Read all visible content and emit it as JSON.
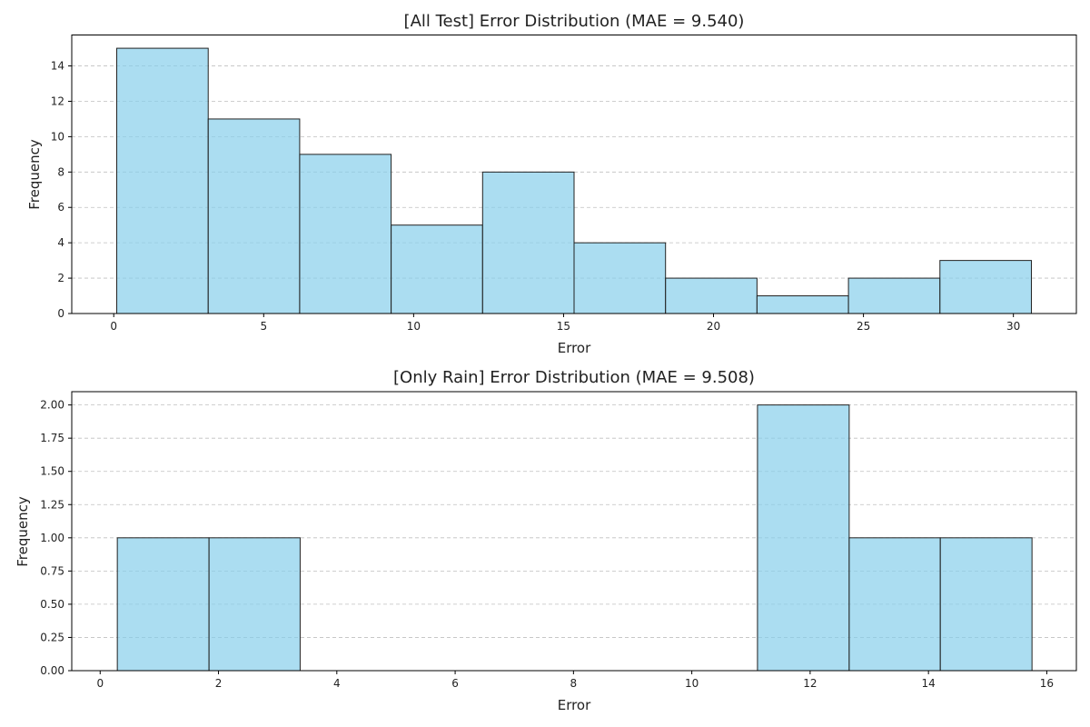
{
  "chart_data": [
    {
      "type": "bar",
      "title": "[All Test] Error Distribution (MAE = 9.540)",
      "xlabel": "Error",
      "ylabel": "Frequency",
      "xlim": [
        -1.4,
        32.1
      ],
      "ylim": [
        0,
        15.75
      ],
      "xticks": [
        0,
        5,
        10,
        15,
        20,
        25,
        30
      ],
      "yticks": [
        0,
        2,
        4,
        6,
        8,
        10,
        12,
        14
      ],
      "yticks_decimals": 0,
      "grid": true,
      "bins": [
        {
          "start": 0.1,
          "end": 3.15,
          "value": 15
        },
        {
          "start": 3.15,
          "end": 6.2,
          "value": 11
        },
        {
          "start": 6.2,
          "end": 9.25,
          "value": 9
        },
        {
          "start": 9.25,
          "end": 12.3,
          "value": 5
        },
        {
          "start": 12.3,
          "end": 15.35,
          "value": 8
        },
        {
          "start": 15.35,
          "end": 18.4,
          "value": 4
        },
        {
          "start": 18.4,
          "end": 21.45,
          "value": 2
        },
        {
          "start": 21.45,
          "end": 24.5,
          "value": 1
        },
        {
          "start": 24.5,
          "end": 27.55,
          "value": 2
        },
        {
          "start": 27.55,
          "end": 30.6,
          "value": 3
        }
      ]
    },
    {
      "type": "bar",
      "title": "[Only Rain] Error Distribution (MAE = 9.508)",
      "xlabel": "Error",
      "ylabel": "Frequency",
      "xlim": [
        -0.48,
        16.5
      ],
      "ylim": [
        0,
        2.1
      ],
      "xticks": [
        0,
        2,
        4,
        6,
        8,
        10,
        12,
        14,
        16
      ],
      "yticks": [
        0,
        0.25,
        0.5,
        0.75,
        1.0,
        1.25,
        1.5,
        1.75,
        2.0
      ],
      "yticks_decimals": 2,
      "grid": true,
      "bins": [
        {
          "start": 0.29,
          "end": 1.84,
          "value": 1
        },
        {
          "start": 1.84,
          "end": 3.38,
          "value": 1
        },
        {
          "start": 3.38,
          "end": 4.93,
          "value": 0
        },
        {
          "start": 4.93,
          "end": 6.47,
          "value": 0
        },
        {
          "start": 6.47,
          "end": 8.02,
          "value": 0
        },
        {
          "start": 8.02,
          "end": 9.56,
          "value": 0
        },
        {
          "start": 9.56,
          "end": 11.11,
          "value": 0
        },
        {
          "start": 11.11,
          "end": 12.66,
          "value": 2
        },
        {
          "start": 12.66,
          "end": 14.2,
          "value": 1
        },
        {
          "start": 14.2,
          "end": 15.75,
          "value": 1
        }
      ]
    }
  ]
}
